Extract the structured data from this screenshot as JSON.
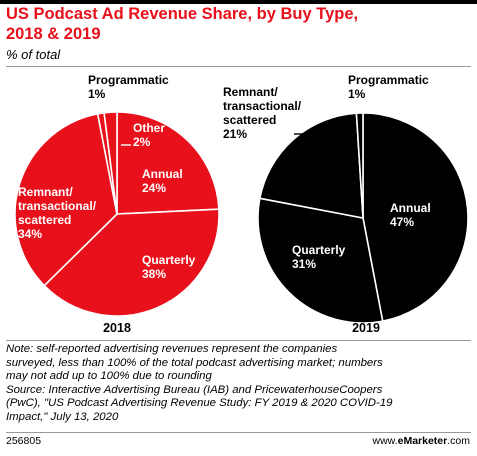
{
  "title_line1": "US Podcast Ad Revenue Share, by Buy Type,",
  "title_line2": "2018 & 2019",
  "subtitle": "% of total",
  "colors": {
    "red": "#e8101b",
    "black": "#000000"
  },
  "chart_data": [
    {
      "type": "pie",
      "year_label": "2018",
      "color": "#e8101b",
      "slices": [
        {
          "name": "Annual",
          "value": 24
        },
        {
          "name": "Quarterly",
          "value": 38
        },
        {
          "name": "Remnant/ transactional/ scattered",
          "value": 34
        },
        {
          "name": "Programmatic",
          "value": 1
        },
        {
          "name": "Other",
          "value": 2
        }
      ],
      "labels": [
        {
          "lines": [
            "Other"
          ],
          "pct": "2%"
        },
        {
          "lines": [
            "Annual"
          ],
          "pct": "24%"
        },
        {
          "lines": [
            "Quarterly"
          ],
          "pct": "38%"
        },
        {
          "lines": [
            "Remnant/",
            "transactional/",
            "scattered"
          ],
          "pct": "34%"
        },
        {
          "lines": [
            "Programmatic"
          ],
          "pct": "1%"
        }
      ]
    },
    {
      "type": "pie",
      "year_label": "2019",
      "color": "#000000",
      "slices": [
        {
          "name": "Annual",
          "value": 47
        },
        {
          "name": "Quarterly",
          "value": 31
        },
        {
          "name": "Remnant/ transactional/ scattered",
          "value": 21
        },
        {
          "name": "Programmatic",
          "value": 1
        }
      ],
      "labels": [
        {
          "lines": [
            "Annual"
          ],
          "pct": "47%"
        },
        {
          "lines": [
            "Quarterly"
          ],
          "pct": "31%"
        },
        {
          "lines": [
            "Remnant/",
            "transactional/",
            "scattered"
          ],
          "pct": "21%"
        },
        {
          "lines": [
            "Programmatic"
          ],
          "pct": "1%"
        }
      ]
    }
  ],
  "note_lines": [
    "Note: self-reported advertising revenues represent the companies",
    "surveyed, less than 100% of the total podcast advertising market; numbers",
    "may not add up to 100% due to rounding",
    "Source: Interactive Advertising Bureau (IAB) and PricewaterhouseCoopers",
    "(PwC), \"US Podcast Advertising Revenue Study: FY 2019 & 2020 COVID-19",
    "Impact,\" July 13, 2020"
  ],
  "footer_id": "256805",
  "footer_brand_prefix": "www.",
  "footer_brand_bold": "eMarketer",
  "footer_brand_suffix": ".com"
}
